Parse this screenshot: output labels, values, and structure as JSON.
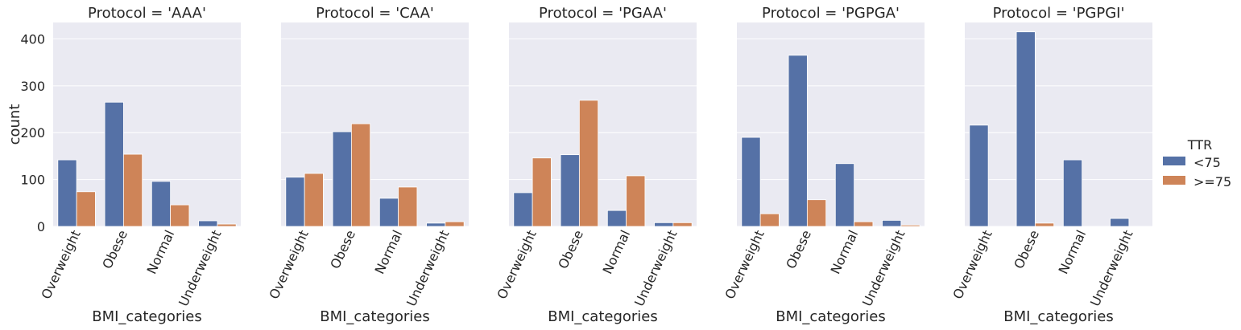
{
  "chart_data": {
    "type": "bar",
    "ylabel": "count",
    "xlabel": "BMI_categories",
    "ylim": [
      0,
      435
    ],
    "yticks": [
      0,
      100,
      200,
      300,
      400
    ],
    "grid": true,
    "legend_position": "right",
    "legend_title": "TTR",
    "categories": [
      "Overweight",
      "Obese",
      "Normal",
      "Underweight"
    ],
    "colors": {
      "<75": "#5571a6",
      ">=75": "#ce8458"
    },
    "panels": [
      {
        "title": "Protocol = 'AAA'",
        "series": [
          {
            "name": "<75",
            "values": [
              142,
              265,
              96,
              12
            ]
          },
          {
            "name": ">=75",
            "values": [
              74,
              154,
              46,
              5
            ]
          }
        ]
      },
      {
        "title": "Protocol = 'CAA'",
        "series": [
          {
            "name": "<75",
            "values": [
              105,
              202,
              60,
              7
            ]
          },
          {
            "name": ">=75",
            "values": [
              113,
              219,
              84,
              10
            ]
          }
        ]
      },
      {
        "title": "Protocol = 'PGAA'",
        "series": [
          {
            "name": "<75",
            "values": [
              72,
              153,
              34,
              8
            ]
          },
          {
            "name": ">=75",
            "values": [
              146,
              269,
              108,
              8
            ]
          }
        ]
      },
      {
        "title": "Protocol = 'PGPGA'",
        "series": [
          {
            "name": "<75",
            "values": [
              190,
              365,
              134,
              13
            ]
          },
          {
            "name": ">=75",
            "values": [
              27,
              57,
              10,
              3
            ]
          }
        ]
      },
      {
        "title": "Protocol = 'PGPGI'",
        "series": [
          {
            "name": "<75",
            "values": [
              216,
              415,
              142,
              17
            ]
          },
          {
            "name": ">=75",
            "values": [
              0,
              7,
              0,
              0
            ]
          }
        ]
      }
    ]
  }
}
